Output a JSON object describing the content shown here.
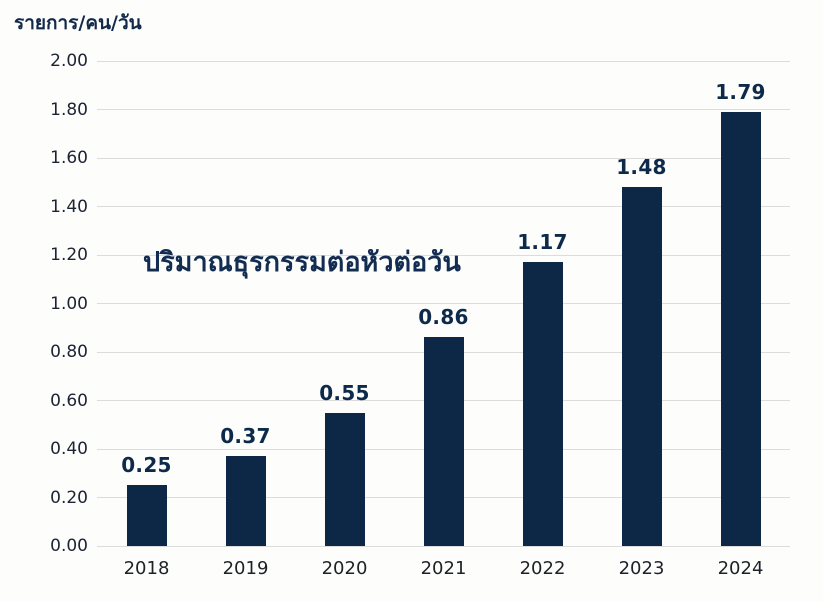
{
  "chart_data": {
    "type": "bar",
    "title": "ปริมาณธุรกรรมต่อหัวต่อวัน",
    "ylabel": "รายการ/คน/วัน",
    "xlabel": "",
    "categories": [
      "2018",
      "2019",
      "2020",
      "2021",
      "2022",
      "2023",
      "2024"
    ],
    "values": [
      0.25,
      0.37,
      0.55,
      0.86,
      1.17,
      1.48,
      1.79
    ],
    "value_labels": [
      "0.25",
      "0.37",
      "0.55",
      "0.86",
      "1.17",
      "1.48",
      "1.79"
    ],
    "ylim": [
      0,
      2.0
    ],
    "ytick_step": 0.2,
    "ytick_labels": [
      "0.00",
      "0.20",
      "0.40",
      "0.60",
      "0.80",
      "1.00",
      "1.20",
      "1.40",
      "1.60",
      "1.80",
      "2.00"
    ],
    "grid": true,
    "legend": "none",
    "colors": {
      "bar": "#0d2846",
      "value_label": "#0e2a4a",
      "title": "#122c52",
      "unit_label": "#13294a",
      "gridline": "#dcdcdc",
      "axis_tick_text": "#1c2333",
      "background": "#fdfdfb"
    }
  }
}
